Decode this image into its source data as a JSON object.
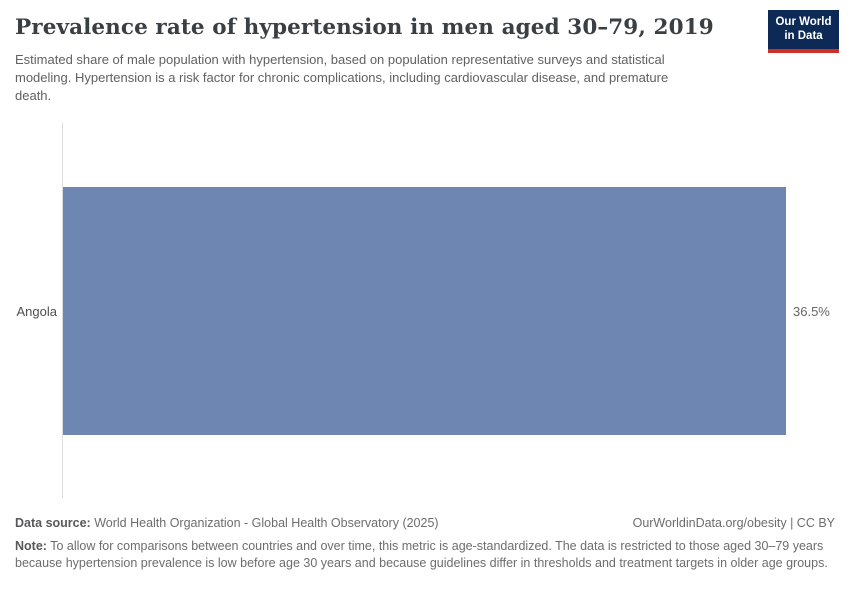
{
  "header": {
    "title": "Prevalence rate of hypertension in men aged 30–79, 2019",
    "subtitle": "Estimated share of male population with hypertension, based on population representative surveys and statistical modeling. Hypertension is a risk factor for chronic complications, including cardiovascular disease, and premature death.",
    "logo": {
      "line1": "Our World",
      "line2": "in Data"
    }
  },
  "chart": {
    "entity_label": "Angola",
    "value_label": "36.5%"
  },
  "chart_data": {
    "type": "bar",
    "orientation": "horizontal",
    "categories": [
      "Angola"
    ],
    "values": [
      36.5
    ],
    "value_unit": "%",
    "value_labels": [
      "36.5%"
    ],
    "title": "Prevalence rate of hypertension in men aged 30–79, 2019",
    "xlabel": "",
    "ylabel": "",
    "xlim": [
      0,
      36.5
    ],
    "grid": false,
    "legend": false,
    "bar_color": "#6e87b2"
  },
  "footer": {
    "data_source_label": "Data source:",
    "data_source_text": " World Health Organization - Global Health Observatory (2025)",
    "link_text": "OurWorldinData.org/obesity | CC BY",
    "note_label": "Note:",
    "note_text": " To allow for comparisons between countries and over time, this metric is age-standardized. The data is restricted to those aged 30–79 years because hypertension prevalence is low before age 30 years and because guidelines differ in thresholds and treatment targets in older age groups."
  },
  "colors": {
    "bar": "#6e87b2",
    "logo_navy": "#0c2a55",
    "logo_red": "#cc3128",
    "axis_line": "#dcdcdc",
    "title_text": "#3a3f44",
    "body_text": "#6d6d6d"
  }
}
